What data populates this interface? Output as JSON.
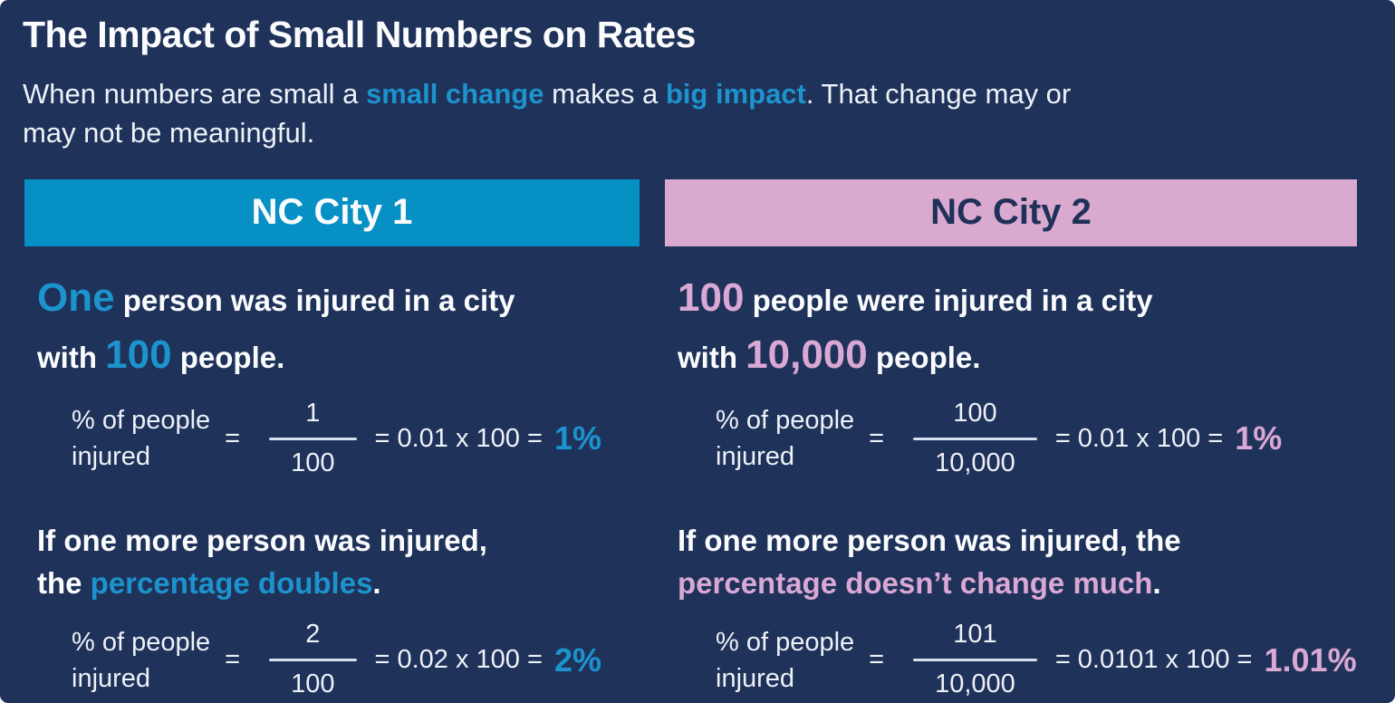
{
  "infographic": {
    "title": "The Impact of Small Numbers on Rates",
    "subtitle_segments": [
      {
        "text": "When numbers are small a "
      },
      {
        "text": "small change",
        "cls": "accent"
      },
      {
        "text": " makes a "
      },
      {
        "text": "big impact",
        "cls": "accent"
      },
      {
        "text": ". That change may or"
      },
      {
        "br": true
      },
      {
        "text": "may not be meaningful."
      }
    ],
    "colors": {
      "background": "#1F3259",
      "blue_accent": "#1D93CE",
      "blue_banner": "#0690C4",
      "pink_accent": "#D9A8D4",
      "pink_banner": "#D9A9CF",
      "navy_text": "#1F3158",
      "white_text": "#FBFCFE"
    },
    "columns": [
      {
        "theme": "blue",
        "banner_label": "NC City 1",
        "statement1_segments": [
          {
            "text": "One",
            "cls": "big-num"
          },
          {
            "text": " person was injured in a city"
          },
          {
            "br": true
          },
          {
            "text": "with "
          },
          {
            "text": "100",
            "cls": "big-num"
          },
          {
            "text": " people."
          }
        ],
        "formula1": {
          "label_line1": "% of people",
          "label_line2": "injured",
          "eq": "=",
          "numerator": "1",
          "denominator": "100",
          "expression": "= 0.01 x 100 =",
          "result": "1%"
        },
        "statement2_segments": [
          {
            "text": "If one more person was injured,"
          },
          {
            "br": true
          },
          {
            "text": "the "
          },
          {
            "text": "percentage doubles",
            "cls": "accent"
          },
          {
            "text": "."
          }
        ],
        "formula2": {
          "label_line1": "% of people",
          "label_line2": "injured",
          "eq": "=",
          "numerator": "2",
          "denominator": "100",
          "expression": "= 0.02 x 100 =",
          "result": "2%"
        }
      },
      {
        "theme": "pink",
        "banner_label": "NC City 2",
        "statement1_segments": [
          {
            "text": "100",
            "cls": "big-num"
          },
          {
            "text": " people were injured in a city"
          },
          {
            "br": true
          },
          {
            "text": "with "
          },
          {
            "text": "10,000",
            "cls": "big-num"
          },
          {
            "text": " people."
          }
        ],
        "formula1": {
          "label_line1": "% of people",
          "label_line2": "injured",
          "eq": "=",
          "numerator": "100",
          "denominator": "10,000",
          "expression": "= 0.01 x 100 =",
          "result": "1%"
        },
        "statement2_segments": [
          {
            "text": "If one more person was injured, the"
          },
          {
            "br": true
          },
          {
            "text": "percentage doesn’t change much",
            "cls": "accent"
          },
          {
            "text": "."
          }
        ],
        "formula2": {
          "label_line1": "% of people",
          "label_line2": "injured",
          "eq": "=",
          "numerator": "101",
          "denominator": "10,000",
          "expression": "= 0.0101 x 100 =",
          "result": "1.01%"
        }
      }
    ]
  }
}
